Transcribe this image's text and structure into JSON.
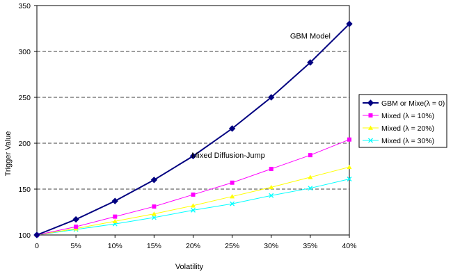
{
  "chart_data": {
    "type": "line",
    "title": "",
    "xlabel": "Volatility",
    "ylabel": "Trigger Value",
    "categories": [
      "0",
      "5%",
      "10%",
      "15%",
      "20%",
      "25%",
      "30%",
      "35%",
      "40%"
    ],
    "x": [
      0,
      5,
      10,
      15,
      20,
      25,
      30,
      35,
      40
    ],
    "ylim": [
      100,
      350
    ],
    "yticks": [
      100,
      150,
      200,
      250,
      300,
      350
    ],
    "grid": "horizontal dashed",
    "legend_position": "right",
    "series": [
      {
        "name": "GBM or Mixe(λ  = 0)",
        "color": "#000080",
        "marker": "diamond",
        "values": [
          100,
          117,
          137,
          160,
          186,
          216,
          250,
          288,
          330
        ]
      },
      {
        "name": "Mixed (λ  = 10%)",
        "color": "#FF00FF",
        "marker": "square",
        "values": [
          100,
          109,
          120,
          131,
          144,
          157,
          172,
          187,
          204
        ]
      },
      {
        "name": "Mixed (λ  = 20%)",
        "color": "#FFFF00",
        "marker": "triangle",
        "values": [
          100,
          107,
          115,
          123,
          132,
          142,
          152,
          163,
          174
        ]
      },
      {
        "name": "Mixed (λ  = 30%)",
        "color": "#00FFFF",
        "marker": "x",
        "values": [
          100,
          106,
          112,
          119,
          127,
          134,
          143,
          151,
          161
        ]
      }
    ],
    "annotations": [
      {
        "text": "GBM Model",
        "x": 35,
        "y": 314
      },
      {
        "text": "Mixed Diffusion-Jump",
        "x": 24.5,
        "y": 184
      }
    ]
  }
}
